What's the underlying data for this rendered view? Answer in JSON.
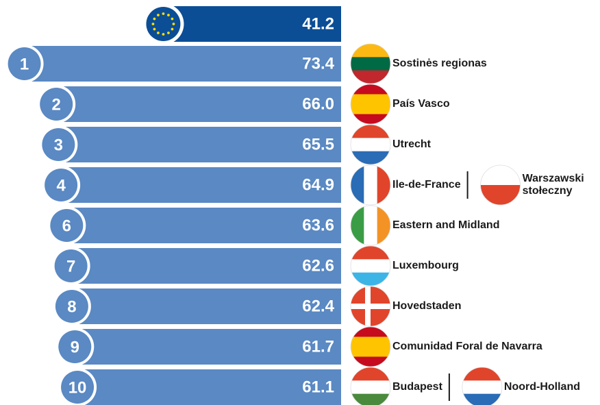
{
  "chart_data": {
    "type": "bar",
    "color": "#5a89c3",
    "eu_color": "#0b4e96",
    "eu_value": 41.2,
    "eu_value_label": "41.2",
    "ranks": [
      1,
      2,
      3,
      4,
      6,
      7,
      8,
      9,
      10
    ],
    "values": [
      73.4,
      66.0,
      65.5,
      64.9,
      63.6,
      62.6,
      62.4,
      61.7,
      61.1
    ],
    "value_labels": [
      "73.4",
      "66.0",
      "65.5",
      "64.9",
      "63.6",
      "62.6",
      "62.4",
      "61.7",
      "61.1"
    ],
    "regions": [
      [
        {
          "name": "Sostinės regionas",
          "flag": {
            "layout": "h",
            "colors": [
              "#fdb913",
              "#006a44",
              "#c1272d"
            ]
          }
        }
      ],
      [
        {
          "name": "País Vasco",
          "flag": {
            "layout": "h",
            "colors": [
              "#c60b1e",
              "#ffc400",
              "#ffc400",
              "#c60b1e"
            ]
          }
        }
      ],
      [
        {
          "name": "Utrecht",
          "flag": {
            "layout": "h",
            "colors": [
              "#e0452b",
              "#ffffff",
              "#2a6cb5"
            ]
          }
        }
      ],
      [
        {
          "name": "Ile-de-France",
          "flag": {
            "layout": "v",
            "colors": [
              "#2a6cb5",
              "#ffffff",
              "#e0452b"
            ]
          }
        },
        {
          "name": "Warszawski stołeczny",
          "flag": {
            "layout": "h",
            "colors": [
              "#ffffff",
              "#e0452b"
            ]
          }
        }
      ],
      [
        {
          "name": "Eastern and Midland",
          "flag": {
            "layout": "v",
            "colors": [
              "#3a9d45",
              "#ffffff",
              "#f39325"
            ]
          }
        }
      ],
      [
        {
          "name": "Luxembourg",
          "flag": {
            "layout": "h",
            "colors": [
              "#e0452b",
              "#ffffff",
              "#3db4e6"
            ]
          }
        }
      ],
      [
        {
          "name": "Hovedstaden",
          "flag": {
            "layout": "cross",
            "colors": [
              "#e0452b",
              "#ffffff"
            ]
          }
        }
      ],
      [
        {
          "name": "Comunidad Foral de Navarra",
          "flag": {
            "layout": "h",
            "colors": [
              "#c60b1e",
              "#ffc400",
              "#ffc400",
              "#c60b1e"
            ]
          }
        }
      ],
      [
        {
          "name": "Budapest",
          "flag": {
            "layout": "h",
            "colors": [
              "#e0452b",
              "#ffffff",
              "#4a8a3c"
            ]
          }
        },
        {
          "name": "Noord-Holland",
          "flag": {
            "layout": "h",
            "colors": [
              "#e0452b",
              "#ffffff",
              "#2a6cb5"
            ]
          }
        }
      ]
    ]
  }
}
